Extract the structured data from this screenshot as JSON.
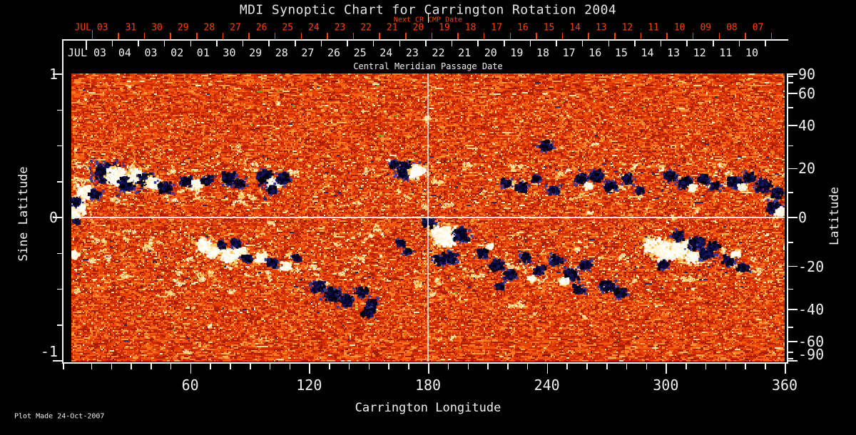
{
  "window": {
    "background": "#000000"
  },
  "colors": {
    "axis": "#f5f5f5",
    "text": "#f0f0f0",
    "title_text": "#e6e6e6",
    "next_cr_red": "#ff4000",
    "grid_line": "#ffffff"
  },
  "chart_data": {
    "type": "heatmap",
    "title": "MDI Synoptic Chart for Carrington Rotation 2004",
    "xlabel": "Carrington Longitude",
    "ylabel_left": "Sine Latitude",
    "ylabel_right": "Latitude",
    "footer_note": "Plot Made 24-Oct-2007",
    "xlim": [
      0,
      360
    ],
    "ylim_sine": [
      -1,
      1
    ],
    "x_axis": {
      "major_tick_labels": [
        "60",
        "120",
        "180",
        "240",
        "300",
        "360"
      ],
      "major_tick_values": [
        60,
        120,
        180,
        240,
        300,
        360
      ],
      "minor_step_deg": 10
    },
    "y_left_axis": {
      "tick_labels": [
        {
          "value": 1,
          "label": "1"
        },
        {
          "value": 0,
          "label": "0"
        },
        {
          "value": -1,
          "label": "-1"
        }
      ],
      "minor_step_sine": 0.25
    },
    "y_right_axis": {
      "major_ticks": [
        {
          "value": 90,
          "label": "90"
        },
        {
          "value": 60,
          "label": "60"
        },
        {
          "value": 40,
          "label": "40"
        },
        {
          "value": 20,
          "label": "20"
        },
        {
          "value": 0,
          "label": "0"
        },
        {
          "value": -20,
          "label": "-20"
        },
        {
          "value": -40,
          "label": "-40"
        },
        {
          "value": -60,
          "label": "-60"
        },
        {
          "value": -90,
          "label": "-90"
        }
      ],
      "minor_tick_values": [
        80,
        70,
        50,
        30,
        10,
        -10,
        -30,
        -50,
        -70,
        -80
      ]
    },
    "top_axes": {
      "next_cr": {
        "title": "Next CR CMP Date",
        "month_label": "JUL 03",
        "day_labels": [
          "31",
          "30",
          "29",
          "28",
          "27",
          "26",
          "25",
          "24",
          "23",
          "22",
          "21",
          "20",
          "19",
          "18",
          "17",
          "16",
          "15",
          "14",
          "13",
          "12",
          "11",
          "10",
          "09",
          "08",
          "07"
        ]
      },
      "cmp": {
        "title": "Central Meridian Passage Date",
        "month_label": "JUL 03",
        "day_labels": [
          "04",
          "03",
          "02",
          "01",
          "30",
          "29",
          "28",
          "27",
          "26",
          "25",
          "24",
          "23",
          "22",
          "21",
          "20",
          "19",
          "18",
          "17",
          "16",
          "15",
          "14",
          "13",
          "12",
          "11",
          "10"
        ]
      }
    },
    "grid_lines": {
      "longitude_deg": 180,
      "sine_latitude": 0
    },
    "colormap": {
      "base_levels": [
        0.16,
        0.4,
        0.63,
        0.8,
        0.905,
        0.955,
        0.978,
        0.9895,
        0.9945,
        0.9975,
        0.9991,
        1.01
      ],
      "base_colors": [
        "#a81c00",
        "#cf2a00",
        "#e64206",
        "#f55f12",
        "#ff7d25",
        "#ff9b3d",
        "#ffb85c",
        "#ffd98e",
        "#fff3c8",
        "#7c1200",
        "#26265e",
        "#76a024"
      ],
      "bright_specks": [
        "#ffd26e",
        "#ffecb0",
        "#ffc050",
        "#fffbe8"
      ],
      "navy_speck": "#26265e",
      "negative_core": [
        "#000006",
        "#010122",
        "#0b0b3e",
        "#16165a"
      ],
      "negative_fringe": "#3a3a96",
      "positive_core": [
        "#ffffff",
        "#fffef8",
        "#fff3d0"
      ],
      "positive_fringe": "#ffc95e"
    },
    "active_regions": {
      "format": [
        "longitude_deg",
        "sine_latitude",
        "radius_deg",
        "polarity"
      ],
      "list": [
        [
          18.0,
          0.31,
          5.0,
          -1
        ],
        [
          22.7,
          0.29,
          4.3,
          1
        ],
        [
          28.1,
          0.23,
          3.6,
          -1
        ],
        [
          33.1,
          0.29,
          3.6,
          1
        ],
        [
          37.8,
          0.26,
          3.2,
          -1
        ],
        [
          41.4,
          0.24,
          2.9,
          1
        ],
        [
          47.5,
          0.21,
          2.9,
          -1
        ],
        [
          7.2,
          0.18,
          3.2,
          1
        ],
        [
          11.9,
          0.16,
          2.5,
          -1
        ],
        [
          3.6,
          0.07,
          3.6,
          1
        ],
        [
          2.2,
          0.11,
          2.2,
          -1
        ],
        [
          58.3,
          0.25,
          2.5,
          -1
        ],
        [
          63.4,
          0.23,
          2.2,
          1
        ],
        [
          68.4,
          0.26,
          2.2,
          -1
        ],
        [
          79.2,
          0.27,
          2.9,
          -1
        ],
        [
          85.0,
          0.24,
          2.2,
          -1
        ],
        [
          97.9,
          0.28,
          3.6,
          -1
        ],
        [
          102.6,
          0.24,
          2.5,
          1
        ],
        [
          107.3,
          0.27,
          2.9,
          -1
        ],
        [
          100.8,
          0.19,
          2.2,
          -1
        ],
        [
          169.2,
          0.33,
          4.0,
          -1
        ],
        [
          174.6,
          0.32,
          3.2,
          1
        ],
        [
          163.1,
          0.37,
          1.8,
          -1
        ],
        [
          239.4,
          0.5,
          2.5,
          -1
        ],
        [
          219.6,
          0.24,
          2.2,
          -1
        ],
        [
          227.2,
          0.21,
          2.5,
          -1
        ],
        [
          234.7,
          0.27,
          1.8,
          -1
        ],
        [
          243.4,
          0.19,
          2.2,
          -1
        ],
        [
          257.4,
          0.27,
          2.5,
          -1
        ],
        [
          265.0,
          0.29,
          2.9,
          -1
        ],
        [
          272.2,
          0.22,
          2.5,
          -1
        ],
        [
          280.8,
          0.27,
          2.2,
          -1
        ],
        [
          286.6,
          0.19,
          1.8,
          -1
        ],
        [
          261.4,
          0.22,
          1.8,
          1
        ],
        [
          302.7,
          0.29,
          2.5,
          -1
        ],
        [
          310.0,
          0.24,
          2.9,
          -1
        ],
        [
          319.0,
          0.27,
          2.2,
          -1
        ],
        [
          324.7,
          0.22,
          1.8,
          -1
        ],
        [
          313.6,
          0.21,
          1.8,
          1
        ],
        [
          335.2,
          0.24,
          2.9,
          -1
        ],
        [
          342.4,
          0.28,
          2.5,
          -1
        ],
        [
          349.6,
          0.22,
          3.2,
          -1
        ],
        [
          356.0,
          0.17,
          2.5,
          -1
        ],
        [
          339.1,
          0.21,
          1.8,
          1
        ],
        [
          354.6,
          0.07,
          2.9,
          -1
        ],
        [
          357.8,
          0.04,
          2.2,
          1
        ],
        [
          67.0,
          -0.2,
          3.2,
          1
        ],
        [
          72.4,
          -0.24,
          2.9,
          1
        ],
        [
          79.6,
          -0.27,
          3.6,
          1
        ],
        [
          85.0,
          -0.23,
          2.5,
          1
        ],
        [
          83.2,
          -0.18,
          2.2,
          -1
        ],
        [
          88.6,
          -0.29,
          2.2,
          -1
        ],
        [
          76.0,
          -0.19,
          1.8,
          -1
        ],
        [
          95.8,
          -0.28,
          2.5,
          1
        ],
        [
          101.2,
          -0.32,
          2.2,
          -1
        ],
        [
          108.4,
          -0.34,
          2.2,
          1
        ],
        [
          113.8,
          -0.28,
          1.8,
          -1
        ],
        [
          124.6,
          -0.48,
          2.9,
          -1
        ],
        [
          131.8,
          -0.54,
          3.2,
          -1
        ],
        [
          139.0,
          -0.58,
          2.9,
          -1
        ],
        [
          146.2,
          -0.52,
          2.5,
          -1
        ],
        [
          151.6,
          -0.6,
          2.2,
          -1
        ],
        [
          149.7,
          -0.66,
          2.5,
          -1
        ],
        [
          166.0,
          -0.18,
          1.8,
          -1
        ],
        [
          169.6,
          -0.24,
          1.8,
          -1
        ],
        [
          180.4,
          -0.04,
          2.5,
          -1
        ],
        [
          188.3,
          -0.13,
          5.0,
          1
        ],
        [
          196.6,
          -0.12,
          3.2,
          -1
        ],
        [
          185.8,
          -0.3,
          2.2,
          -1
        ],
        [
          191.2,
          -0.28,
          2.9,
          -1
        ],
        [
          207.4,
          -0.25,
          2.5,
          -1
        ],
        [
          214.6,
          -0.33,
          2.9,
          -1
        ],
        [
          221.8,
          -0.4,
          2.5,
          -1
        ],
        [
          229.0,
          -0.28,
          2.2,
          -1
        ],
        [
          236.2,
          -0.37,
          2.5,
          -1
        ],
        [
          216.4,
          -0.48,
          1.8,
          -1
        ],
        [
          211.0,
          -0.2,
          1.4,
          1
        ],
        [
          232.6,
          -0.43,
          1.4,
          1
        ],
        [
          245.2,
          -0.3,
          2.5,
          -1
        ],
        [
          252.4,
          -0.4,
          2.9,
          -1
        ],
        [
          259.6,
          -0.33,
          2.2,
          -1
        ],
        [
          256.0,
          -0.5,
          2.2,
          -1
        ],
        [
          248.8,
          -0.45,
          1.8,
          1
        ],
        [
          270.4,
          -0.48,
          2.9,
          -1
        ],
        [
          276.8,
          -0.53,
          2.5,
          -1
        ],
        [
          293.8,
          -0.2,
          3.6,
          1
        ],
        [
          301.0,
          -0.24,
          5.0,
          1
        ],
        [
          308.2,
          -0.22,
          4.3,
          1
        ],
        [
          313.6,
          -0.28,
          3.2,
          1
        ],
        [
          306.4,
          -0.13,
          2.5,
          -1
        ],
        [
          315.4,
          -0.18,
          3.2,
          -1
        ],
        [
          320.8,
          -0.25,
          2.9,
          -1
        ],
        [
          299.2,
          -0.33,
          2.2,
          -1
        ],
        [
          324.4,
          -0.2,
          2.2,
          -1
        ],
        [
          331.6,
          -0.3,
          2.5,
          -1
        ],
        [
          338.8,
          -0.35,
          2.2,
          -1
        ],
        [
          335.2,
          -0.25,
          1.8,
          1
        ],
        [
          1.8,
          -0.26,
          1.8,
          1
        ],
        [
          1.4,
          0.03,
          2.2,
          1
        ],
        [
          2.5,
          -0.03,
          1.4,
          -1
        ]
      ]
    }
  }
}
